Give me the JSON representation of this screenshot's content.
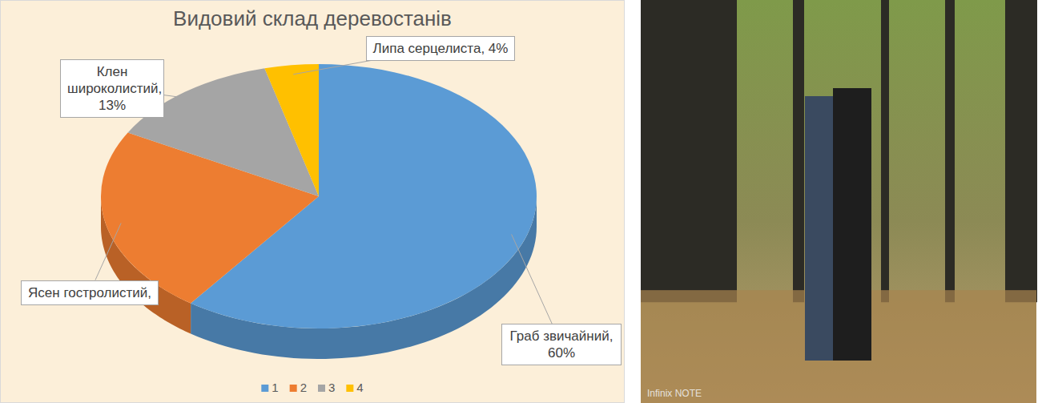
{
  "chart_data": {
    "type": "pie",
    "title": "Видовий склад деревостанів",
    "categories": [
      "1",
      "2",
      "3",
      "4"
    ],
    "values": [
      60,
      23,
      13,
      4
    ],
    "value_labels": [
      "Граб звичайний, 60%",
      "Ясен гостролистий,",
      "Клен широколистий, 13%",
      "Липа серцелиста, 4%"
    ],
    "colors": [
      "#5b9bd5",
      "#ed7d31",
      "#a5a5a5",
      "#ffc000"
    ],
    "data_labels": true,
    "legend": "bottom"
  },
  "photo": {
    "watermark": "Infinix NOTE"
  }
}
